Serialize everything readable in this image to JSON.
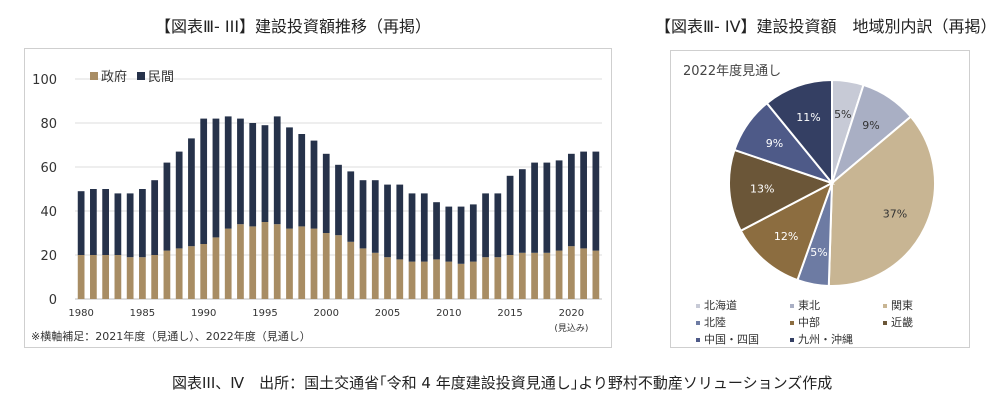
{
  "titles": {
    "left": "【図表Ⅲ- III】建設投資額推移（再掲）",
    "right": "【図表Ⅲ- IV】建設投資額　地域別内訳（再掲）"
  },
  "footnote": "※横軸補足：2021年度（見通し）、2022年度（見通し）",
  "caption": "図表III、Ⅳ　出所：国土交通省｢令和 4 年度建設投資見通し｣より野村不動産ソリューションズ作成",
  "chart_data": [
    {
      "type": "bar",
      "stacked": true,
      "title": "",
      "xlabel": "",
      "ylabel": "",
      "ylim": [
        0,
        100
      ],
      "yticks": [
        "0",
        "20",
        "40",
        "60",
        "80",
        "100"
      ],
      "xtick_labels": [
        {
          "year": 1980,
          "label": "1980"
        },
        {
          "year": 1985,
          "label": "1985"
        },
        {
          "year": 1990,
          "label": "1990"
        },
        {
          "year": 1995,
          "label": "1995"
        },
        {
          "year": 2000,
          "label": "2000"
        },
        {
          "year": 2005,
          "label": "2005"
        },
        {
          "year": 2010,
          "label": "2010"
        },
        {
          "year": 2015,
          "label": "2015"
        },
        {
          "year": 2020,
          "label": "2020"
        }
      ],
      "xtick_extra": "(見込み)",
      "grid": true,
      "legend": "top-left",
      "categories": [
        1980,
        1981,
        1982,
        1983,
        1984,
        1985,
        1986,
        1987,
        1988,
        1989,
        1990,
        1991,
        1992,
        1993,
        1994,
        1995,
        1996,
        1997,
        1998,
        1999,
        2000,
        2001,
        2002,
        2003,
        2004,
        2005,
        2006,
        2007,
        2008,
        2009,
        2010,
        2011,
        2012,
        2013,
        2014,
        2015,
        2016,
        2017,
        2018,
        2019,
        2020,
        2021,
        2022
      ],
      "series": [
        {
          "name": "政府",
          "color": "#a88d64",
          "values": [
            20,
            20,
            20,
            20,
            19,
            19,
            20,
            22,
            23,
            24,
            25,
            28,
            32,
            34,
            33,
            35,
            34,
            32,
            33,
            32,
            30,
            29,
            26,
            23,
            21,
            19,
            18,
            17,
            17,
            18,
            17,
            16,
            17,
            19,
            19,
            20,
            21,
            21,
            21,
            22,
            24,
            23,
            22
          ]
        },
        {
          "name": "民間",
          "color": "#26324a",
          "values": [
            29,
            30,
            30,
            28,
            29,
            31,
            34,
            40,
            44,
            49,
            57,
            54,
            51,
            48,
            47,
            44,
            49,
            46,
            42,
            40,
            36,
            32,
            32,
            31,
            33,
            33,
            34,
            31,
            31,
            26,
            25,
            26,
            26,
            29,
            29,
            36,
            38,
            41,
            41,
            41,
            42,
            44,
            45
          ]
        }
      ]
    },
    {
      "type": "pie",
      "title": "2022年度見通し",
      "slices": [
        {
          "name": "北海道",
          "value": 5,
          "label": "5%",
          "color": "#c7cad6"
        },
        {
          "name": "東北",
          "value": 9,
          "label": "9%",
          "color": "#a9afc4"
        },
        {
          "name": "関東",
          "value": 37,
          "label": "37%",
          "color": "#c8b593"
        },
        {
          "name": "北陸",
          "value": 5,
          "label": "5%",
          "color": "#6d7ba3"
        },
        {
          "name": "中部",
          "value": 12,
          "label": "12%",
          "color": "#8c6d40"
        },
        {
          "name": "近畿",
          "value": 13,
          "label": "13%",
          "color": "#6b5638"
        },
        {
          "name": "中国・四国",
          "value": 9,
          "label": "9%",
          "color": "#4e5a88"
        },
        {
          "name": "九州・沖縄",
          "value": 11,
          "label": "11%",
          "color": "#343f63"
        }
      ],
      "legend": "bottom"
    }
  ]
}
